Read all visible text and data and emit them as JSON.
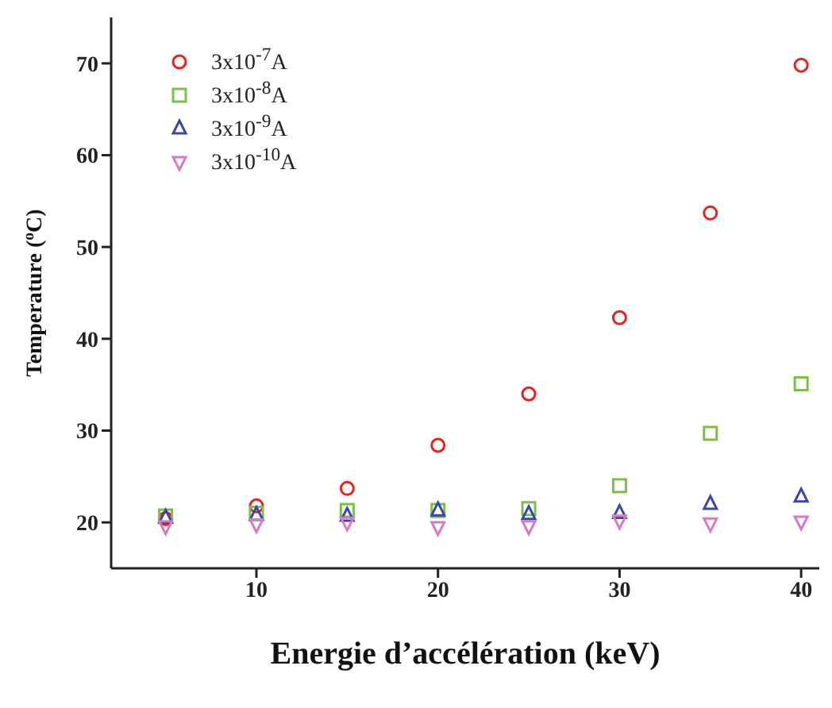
{
  "chart_data": {
    "type": "scatter",
    "xlabel": "Energie d’accélération (keV)",
    "ylabel": "Temperature ($^{o}$C)",
    "x": [
      5,
      10,
      15,
      20,
      25,
      30,
      35,
      40
    ],
    "series": [
      {
        "name": "3x10$^{-7}$A",
        "color": "#e8211c",
        "marker": "circle",
        "values": [
          20.4,
          21.8,
          23.7,
          28.4,
          34.0,
          42.3,
          53.7,
          69.8
        ]
      },
      {
        "name": "3x10$^{-8}$A",
        "color": "#7ac143",
        "marker": "square",
        "values": [
          20.7,
          21.0,
          21.3,
          21.3,
          21.5,
          24.0,
          29.7,
          35.1
        ]
      },
      {
        "name": "3x10$^{-9}$A",
        "color": "#3a47a8",
        "marker": "triangle",
        "values": [
          20.5,
          20.8,
          20.7,
          21.3,
          20.9,
          21.0,
          22.0,
          22.8
        ]
      },
      {
        "name": "3x10$^{-10}$A",
        "color": "#d77ac4",
        "marker": "triangle-down",
        "values": [
          19.6,
          19.8,
          20.0,
          19.5,
          19.6,
          20.2,
          19.9,
          20.1
        ]
      }
    ],
    "xlim": [
      2,
      41
    ],
    "xticks": [
      10,
      20,
      30,
      40
    ],
    "ylim": [
      15,
      75
    ],
    "yticks": [
      20,
      30,
      40,
      50,
      60,
      70
    ],
    "grid": false,
    "legend": "top left"
  }
}
